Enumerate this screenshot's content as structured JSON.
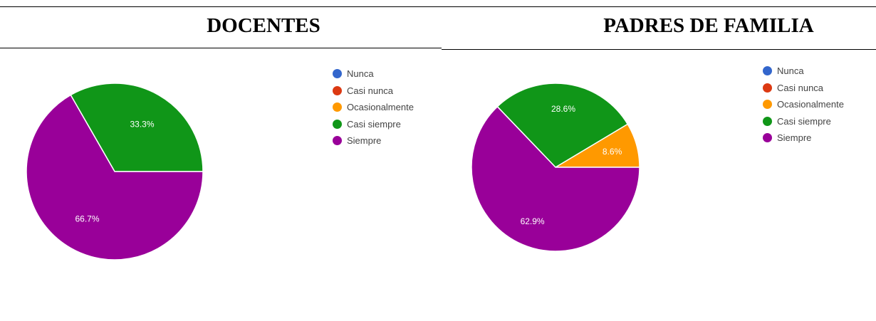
{
  "headers": {
    "left": "DOCENTES",
    "right": "PADRES DE FAMILIA"
  },
  "chart_data": [
    {
      "type": "pie",
      "title": "DOCENTES",
      "categories": [
        "Nunca",
        "Casi nunca",
        "Ocasionalmente",
        "Casi siempre",
        "Siempre"
      ],
      "colors": [
        "#3366cc",
        "#dc3912",
        "#ff9900",
        "#109618",
        "#990099"
      ],
      "values": [
        0,
        0,
        0,
        33.3,
        66.7
      ],
      "labels": [
        "",
        "",
        "",
        "33.3%",
        "66.7%"
      ],
      "legend_position": "right"
    },
    {
      "type": "pie",
      "title": "PADRES DE FAMILIA",
      "categories": [
        "Nunca",
        "Casi nunca",
        "Ocasionalmente",
        "Casi siempre",
        "Siempre"
      ],
      "colors": [
        "#3366cc",
        "#dc3912",
        "#ff9900",
        "#109618",
        "#990099"
      ],
      "values": [
        0,
        0,
        8.6,
        28.6,
        62.9
      ],
      "labels": [
        "",
        "",
        "8.6%",
        "28.6%",
        "62.9%"
      ],
      "legend_position": "right"
    }
  ]
}
